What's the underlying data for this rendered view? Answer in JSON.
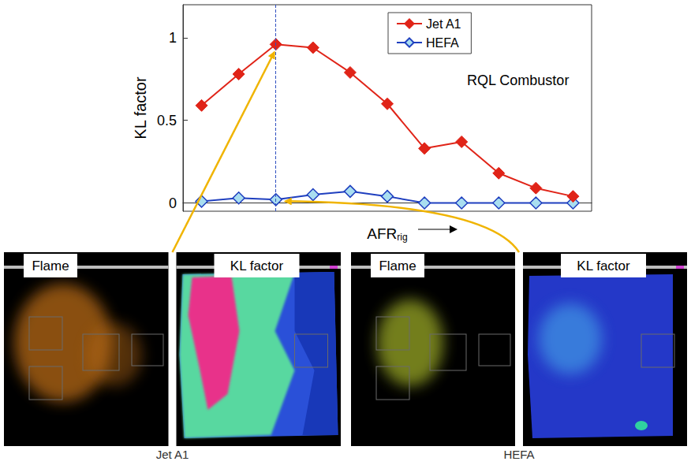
{
  "chart_data": {
    "type": "line",
    "y_label": "KL factor",
    "x_label": {
      "text": "AFR",
      "subscript": "rig"
    },
    "annotation": "RQL Combustor",
    "categories": [
      null,
      null,
      null,
      null,
      null,
      null,
      null,
      null,
      null,
      null,
      null
    ],
    "series": [
      {
        "name": "Jet A1",
        "color": "#e02418",
        "marker": "diamond",
        "values": [
          0.59,
          0.78,
          0.96,
          0.94,
          0.79,
          0.6,
          0.33,
          0.37,
          0.18,
          0.09,
          0.04
        ]
      },
      {
        "name": "HEFA",
        "color": "#1f3fbf",
        "marker": "diamond",
        "values": [
          0.01,
          0.03,
          0.02,
          0.05,
          0.07,
          0.04,
          0,
          0,
          0,
          0,
          0
        ]
      }
    ],
    "ylim": [
      -0.05,
      1.2
    ],
    "yticks": [
      0,
      0.5,
      1
    ],
    "grid": false,
    "legend": "upper right",
    "tick_labels": "y",
    "marked_point": 2
  },
  "panels": [
    {
      "caption": "Jet A1",
      "images": [
        "Flame",
        "KL factor"
      ]
    },
    {
      "caption": "HEFA",
      "images": [
        "Flame",
        "KL factor"
      ]
    }
  ]
}
